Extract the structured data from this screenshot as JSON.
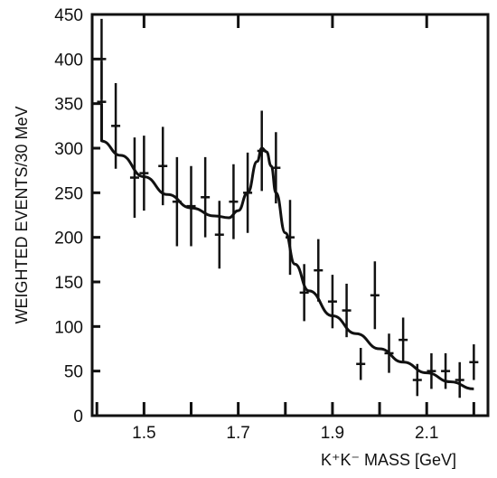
{
  "chart_data": {
    "type": "scatter",
    "title": "",
    "xlabel": "K⁺K⁻ MASS [GeV]",
    "ylabel": "WEIGHTED EVENTS/30 MeV",
    "xlim": [
      1.39,
      2.23
    ],
    "ylim": [
      0,
      450
    ],
    "xticks": [
      1.5,
      1.7,
      1.9,
      2.1
    ],
    "xtick_labels": [
      "1.5",
      "1.7",
      "1.9",
      "2.1"
    ],
    "yticks": [
      0,
      50,
      100,
      150,
      200,
      250,
      300,
      350,
      400,
      450
    ],
    "ytick_labels": [
      "0",
      "50",
      "100",
      "150",
      "200",
      "250",
      "300",
      "350",
      "400",
      "450"
    ],
    "grid": false,
    "series": [
      {
        "kind": "points-with-errors",
        "points": [
          {
            "x": 1.41,
            "y": 400,
            "yerr": 45
          },
          {
            "x": 1.41,
            "y": 352,
            "yerr": 45
          },
          {
            "x": 1.44,
            "y": 325,
            "yerr": 48
          },
          {
            "x": 1.48,
            "y": 267,
            "yerr": 45
          },
          {
            "x": 1.5,
            "y": 272,
            "yerr": 42
          },
          {
            "x": 1.54,
            "y": 280,
            "yerr": 44
          },
          {
            "x": 1.57,
            "y": 240,
            "yerr": 50
          },
          {
            "x": 1.6,
            "y": 235,
            "yerr": 45
          },
          {
            "x": 1.63,
            "y": 245,
            "yerr": 45
          },
          {
            "x": 1.66,
            "y": 203,
            "yerr": 38
          },
          {
            "x": 1.69,
            "y": 240,
            "yerr": 42
          },
          {
            "x": 1.72,
            "y": 250,
            "yerr": 45
          },
          {
            "x": 1.75,
            "y": 297,
            "yerr": 45
          },
          {
            "x": 1.78,
            "y": 278,
            "yerr": 40
          },
          {
            "x": 1.81,
            "y": 200,
            "yerr": 42
          },
          {
            "x": 1.84,
            "y": 138,
            "yerr": 32
          },
          {
            "x": 1.87,
            "y": 163,
            "yerr": 35
          },
          {
            "x": 1.9,
            "y": 128,
            "yerr": 30
          },
          {
            "x": 1.93,
            "y": 118,
            "yerr": 30
          },
          {
            "x": 1.96,
            "y": 58,
            "yerr": 18
          },
          {
            "x": 1.99,
            "y": 135,
            "yerr": 38
          },
          {
            "x": 2.02,
            "y": 70,
            "yerr": 22
          },
          {
            "x": 2.05,
            "y": 85,
            "yerr": 25
          },
          {
            "x": 2.08,
            "y": 40,
            "yerr": 18
          },
          {
            "x": 2.11,
            "y": 50,
            "yerr": 20
          },
          {
            "x": 2.14,
            "y": 50,
            "yerr": 20
          },
          {
            "x": 2.17,
            "y": 40,
            "yerr": 20
          },
          {
            "x": 2.2,
            "y": 60,
            "yerr": 20
          }
        ]
      },
      {
        "kind": "fit-curve",
        "x": [
          1.41,
          1.45,
          1.5,
          1.55,
          1.6,
          1.65,
          1.68,
          1.7,
          1.72,
          1.74,
          1.75,
          1.76,
          1.77,
          1.78,
          1.8,
          1.82,
          1.85,
          1.9,
          1.95,
          2.0,
          2.05,
          2.1,
          2.15,
          2.2
        ],
        "y": [
          308,
          292,
          268,
          248,
          233,
          224,
          222,
          230,
          250,
          285,
          300,
          296,
          280,
          250,
          205,
          170,
          140,
          112,
          92,
          75,
          60,
          48,
          38,
          30
        ]
      }
    ]
  }
}
